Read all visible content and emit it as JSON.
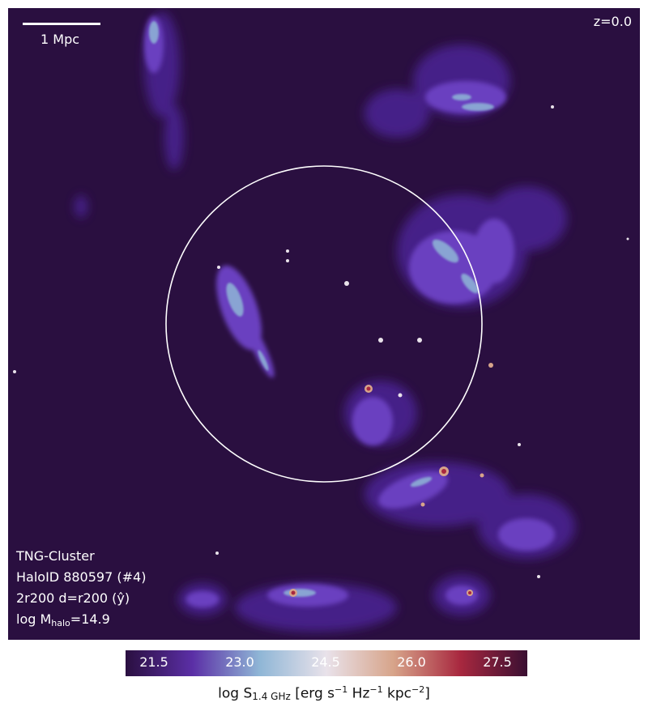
{
  "scale_bar": {
    "label": "1 Mpc"
  },
  "redshift_label": "z=0.0",
  "info": {
    "simulation": "TNG-Cluster",
    "halo": "HaloID 880597 (#4)",
    "projection": "2r200 d=r200 (ŷ)",
    "mass_prefix": "log M",
    "mass_sub": "halo",
    "mass_suffix": "=14.9"
  },
  "colorbar": {
    "ticks": [
      "21.5",
      "23.0",
      "24.5",
      "26.0",
      "27.5"
    ],
    "range": [
      20.9,
      28.1
    ],
    "label_prefix": "log S",
    "label_sub": "1.4 GHz",
    "label_main": " [erg s",
    "exp1": "−1",
    "label_mid": " Hz",
    "exp2": "−1",
    "label_mid2": " kpc",
    "exp3": "−2",
    "label_end": "]",
    "colors": [
      "#2a0f40",
      "#5b2fa6",
      "#8fb6d6",
      "#e9e2ea",
      "#d7a48a",
      "#a8283f",
      "#3a0f32"
    ]
  }
}
